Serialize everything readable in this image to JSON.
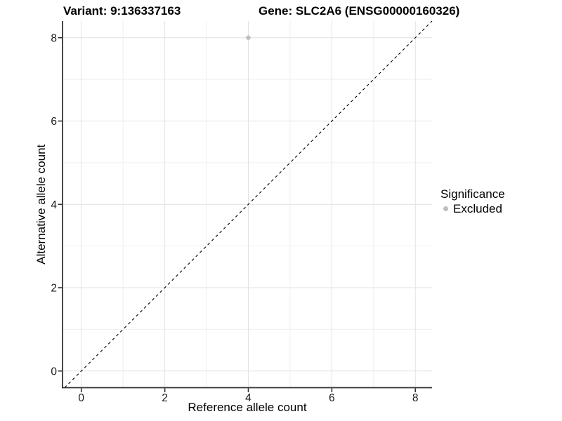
{
  "titles": {
    "variant": "Variant: 9:136337163",
    "gene": "Gene: SLC2A6 (ENSG00000160326)"
  },
  "legend": {
    "title": "Significance",
    "items": [
      {
        "label": "Excluded",
        "color": "#bebebe"
      }
    ]
  },
  "chart_data": {
    "type": "scatter",
    "xlabel": "Reference allele count",
    "ylabel": "Alternative allele count",
    "xlim": [
      -0.45,
      8.4
    ],
    "ylim": [
      -0.4,
      8.4
    ],
    "xticks": [
      0,
      2,
      4,
      6,
      8
    ],
    "yticks": [
      0,
      2,
      4,
      6,
      8
    ],
    "xminor": [
      1,
      3,
      5,
      7
    ],
    "yminor": [
      1,
      3,
      5,
      7
    ],
    "grid": true,
    "legend_position": "right",
    "legend_title": "Significance",
    "series": [
      {
        "name": "Excluded",
        "color": "#bebebe",
        "points": [
          {
            "x": 4,
            "y": 8
          }
        ]
      }
    ],
    "reference_line": {
      "kind": "identity",
      "equation": "y = x",
      "style": "dashed",
      "color": "#000000"
    },
    "colors": {
      "grid_major": "#e2e2e2",
      "grid_minor": "#efefef",
      "axis": "#333333",
      "tick_label": "#1a1a1a"
    }
  }
}
